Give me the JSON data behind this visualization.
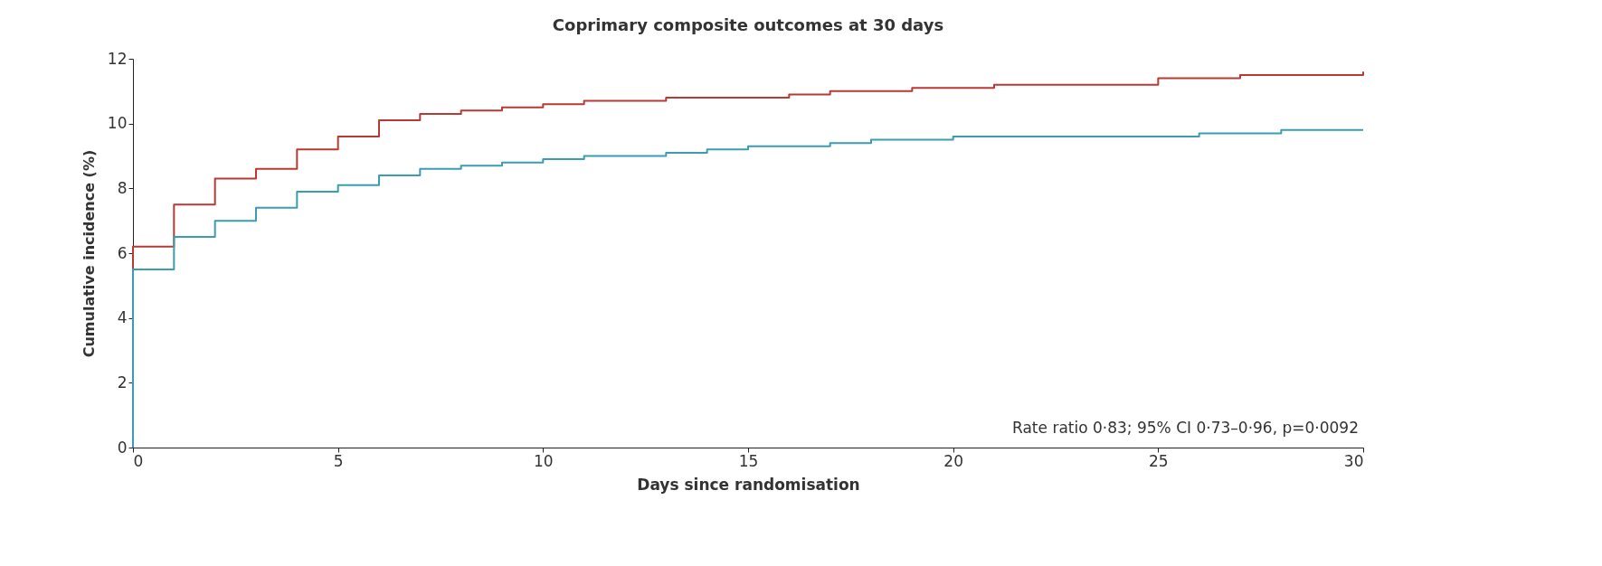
{
  "chart_data": {
    "type": "step",
    "title": "Coprimary composite outcomes at 30 days",
    "xlabel": "Days since randomisation",
    "ylabel": "Cumulative incidence (%)",
    "xlim": [
      0,
      30
    ],
    "xticks": [
      0,
      5,
      10,
      15,
      20,
      25,
      30
    ],
    "ylim": [
      0,
      12
    ],
    "yticks": [
      0,
      2,
      4,
      6,
      8,
      10,
      12
    ],
    "grid": false,
    "line_style": "solid",
    "annotations": [
      "Rate ratio 0·83; 95% CI 0·73–0·96, p=0·0092"
    ],
    "series": [
      {
        "color": "#b83a35",
        "x": [
          0,
          0,
          1,
          2,
          3,
          4,
          5,
          6,
          7,
          8,
          9,
          10,
          11,
          12,
          13,
          14,
          15,
          16,
          17,
          18,
          19,
          20,
          21,
          22,
          23,
          24,
          25,
          26,
          27,
          28,
          29,
          30
        ],
        "values": [
          0,
          6.2,
          7.5,
          8.3,
          8.6,
          9.2,
          9.6,
          10.1,
          10.3,
          10.4,
          10.5,
          10.6,
          10.7,
          10.7,
          10.8,
          10.8,
          10.8,
          10.9,
          11.0,
          11.0,
          11.1,
          11.1,
          11.2,
          11.2,
          11.2,
          11.2,
          11.4,
          11.4,
          11.5,
          11.5,
          11.5,
          11.6
        ]
      },
      {
        "color": "#3a9db0",
        "x": [
          0,
          0,
          1,
          2,
          3,
          4,
          5,
          6,
          7,
          8,
          9,
          10,
          11,
          12,
          13,
          14,
          15,
          16,
          17,
          18,
          19,
          20,
          21,
          22,
          23,
          24,
          25,
          26,
          27,
          28,
          29,
          30
        ],
        "values": [
          0,
          5.5,
          6.5,
          7.0,
          7.4,
          7.9,
          8.1,
          8.4,
          8.6,
          8.7,
          8.8,
          8.9,
          9.0,
          9.0,
          9.1,
          9.2,
          9.3,
          9.3,
          9.4,
          9.5,
          9.5,
          9.6,
          9.6,
          9.6,
          9.6,
          9.6,
          9.6,
          9.7,
          9.7,
          9.8,
          9.8,
          9.8
        ]
      }
    ]
  }
}
